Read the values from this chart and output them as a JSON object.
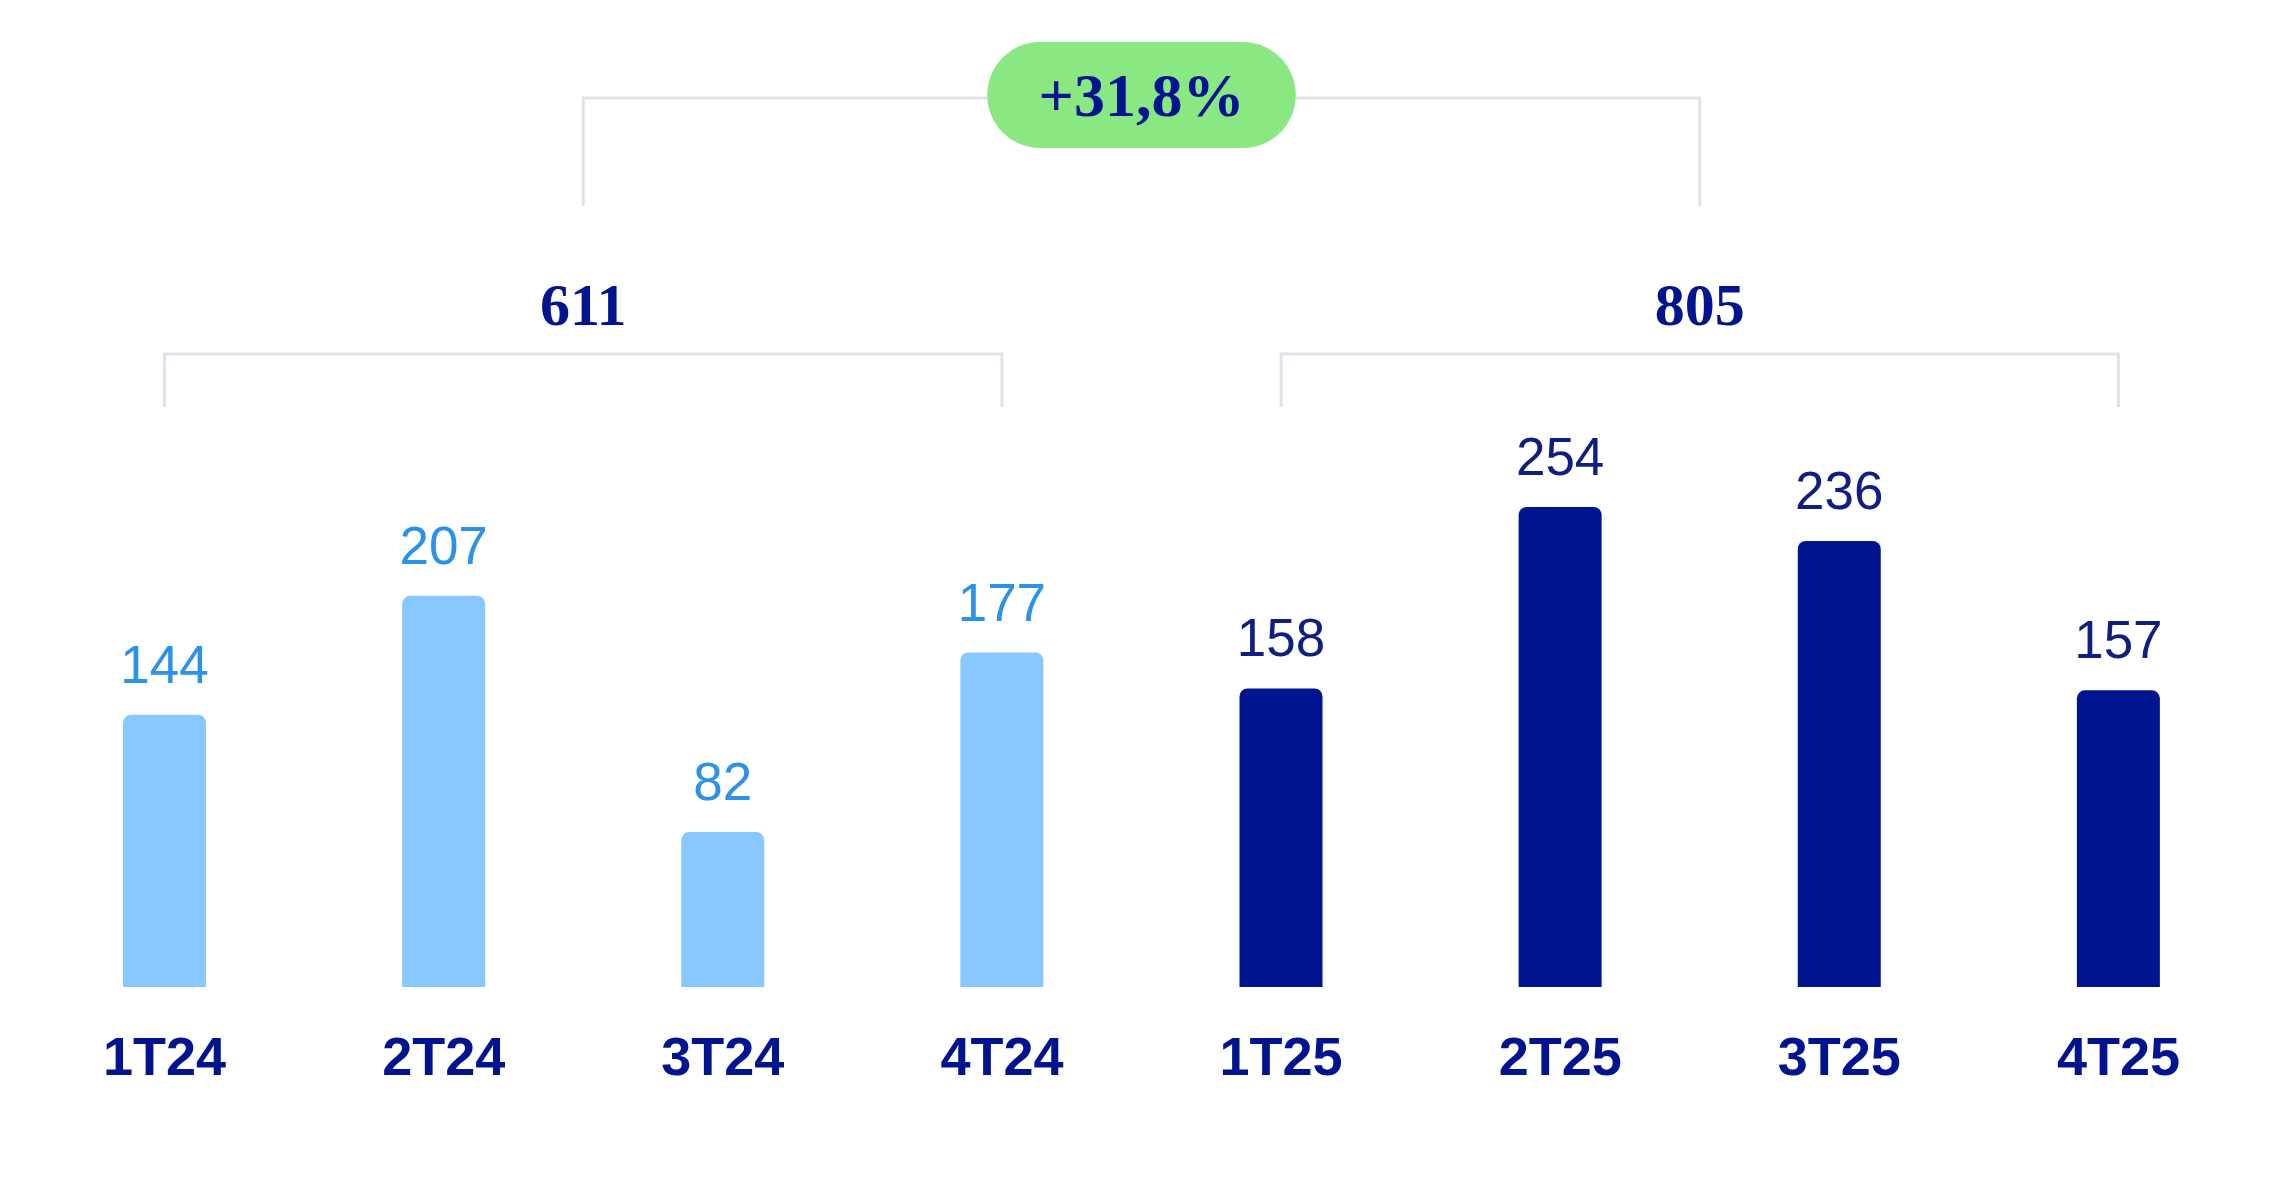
{
  "chart_data": {
    "type": "bar",
    "categories": [
      "1T24",
      "2T24",
      "3T24",
      "4T24",
      "1T25",
      "2T25",
      "3T25",
      "4T25"
    ],
    "values": [
      144,
      207,
      82,
      177,
      158,
      254,
      236,
      157
    ],
    "colors": [
      "#88c8ff",
      "#88c8ff",
      "#88c8ff",
      "#88c8ff",
      "#00148f",
      "#00148f",
      "#00148f",
      "#00148f"
    ],
    "data_labels": true,
    "tick_labels": "x",
    "annotations": [
      "611",
      "805",
      "+31,8%"
    ]
  }
}
